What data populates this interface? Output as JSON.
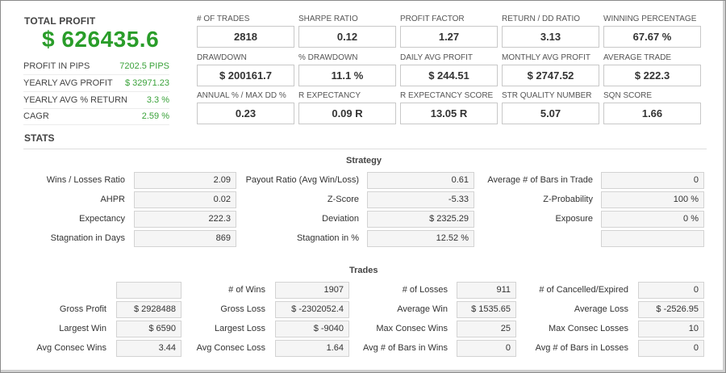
{
  "summary": {
    "title": "TOTAL PROFIT",
    "value": "$ 626435.6",
    "rows": [
      {
        "label": "PROFIT IN PIPS",
        "value": "7202.5 PIPS"
      },
      {
        "label": "YEARLY AVG PROFIT",
        "value": "$ 32971.23"
      },
      {
        "label": "YEARLY AVG % RETURN",
        "value": "3.3 %"
      },
      {
        "label": "CAGR",
        "value": "2.59 %"
      }
    ]
  },
  "metrics": [
    {
      "label": "# OF TRADES",
      "value": "2818"
    },
    {
      "label": "SHARPE RATIO",
      "value": "0.12"
    },
    {
      "label": "PROFIT FACTOR",
      "value": "1.27"
    },
    {
      "label": "RETURN / DD RATIO",
      "value": "3.13"
    },
    {
      "label": "WINNING PERCENTAGE",
      "value": "67.67 %"
    },
    {
      "label": "DRAWDOWN",
      "value": "$ 200161.7"
    },
    {
      "label": "% DRAWDOWN",
      "value": "11.1 %"
    },
    {
      "label": "DAILY AVG PROFIT",
      "value": "$ 244.51"
    },
    {
      "label": "MONTHLY AVG PROFIT",
      "value": "$ 2747.52"
    },
    {
      "label": "AVERAGE TRADE",
      "value": "$ 222.3"
    },
    {
      "label": "ANNUAL % / MAX DD %",
      "value": "0.23"
    },
    {
      "label": "R EXPECTANCY",
      "value": "0.09 R"
    },
    {
      "label": "R EXPECTANCY SCORE",
      "value": "13.05 R"
    },
    {
      "label": "STR QUALITY NUMBER",
      "value": "5.07"
    },
    {
      "label": "SQN SCORE",
      "value": "1.66"
    }
  ],
  "stats": {
    "title": "STATS",
    "strategy": {
      "title": "Strategy",
      "rows": [
        [
          {
            "label": "Wins / Losses Ratio",
            "value": "2.09"
          },
          {
            "label": "Payout Ratio (Avg Win/Loss)",
            "value": "0.61"
          },
          {
            "label": "Average # of Bars in Trade",
            "value": "0"
          }
        ],
        [
          {
            "label": "AHPR",
            "value": "0.02"
          },
          {
            "label": "Z-Score",
            "value": "-5.33"
          },
          {
            "label": "Z-Probability",
            "value": "100 %"
          }
        ],
        [
          {
            "label": "Expectancy",
            "value": "222.3"
          },
          {
            "label": "Deviation",
            "value": "$ 2325.29"
          },
          {
            "label": "Exposure",
            "value": "0 %"
          }
        ],
        [
          {
            "label": "Stagnation in Days",
            "value": "869"
          },
          {
            "label": "Stagnation in %",
            "value": "12.52 %"
          },
          {
            "label": "",
            "value": ""
          }
        ]
      ]
    },
    "trades": {
      "title": "Trades",
      "rows": [
        [
          {
            "label": "",
            "value": ""
          },
          {
            "label": "# of Wins",
            "value": "1907"
          },
          {
            "label": "# of Losses",
            "value": "911"
          },
          {
            "label": "# of Cancelled/Expired",
            "value": "0"
          }
        ],
        [
          {
            "label": "Gross Profit",
            "value": "$ 2928488"
          },
          {
            "label": "Gross Loss",
            "value": "$ -2302052.4"
          },
          {
            "label": "Average Win",
            "value": "$ 1535.65"
          },
          {
            "label": "Average Loss",
            "value": "$ -2526.95"
          }
        ],
        [
          {
            "label": "Largest Win",
            "value": "$ 6590"
          },
          {
            "label": "Largest Loss",
            "value": "$ -9040"
          },
          {
            "label": "Max Consec Wins",
            "value": "25"
          },
          {
            "label": "Max Consec Losses",
            "value": "10"
          }
        ],
        [
          {
            "label": "Avg Consec Wins",
            "value": "3.44"
          },
          {
            "label": "Avg Consec Loss",
            "value": "1.64"
          },
          {
            "label": "Avg # of Bars in Wins",
            "value": "0"
          },
          {
            "label": "Avg # of Bars in Losses",
            "value": "0"
          }
        ]
      ]
    }
  }
}
